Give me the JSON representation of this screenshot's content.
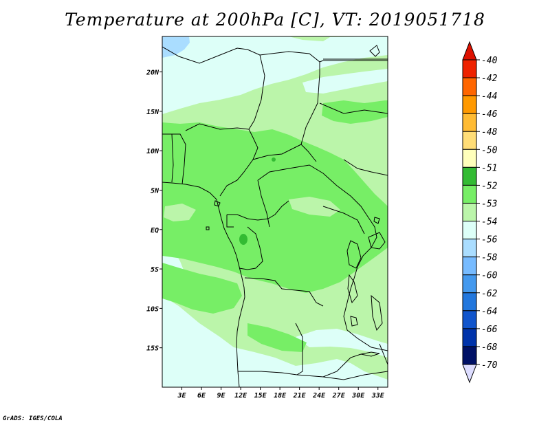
{
  "title": "Temperature at 200hPa [C], VT: 2019051718",
  "credit": "GrADS: IGES/COLA",
  "map": {
    "lon_range": [
      0,
      34.5
    ],
    "lat_range": [
      -20,
      24.5
    ],
    "lat_ticks": [
      {
        "value": 20,
        "label": "20N"
      },
      {
        "value": 15,
        "label": "15N"
      },
      {
        "value": 10,
        "label": "10N"
      },
      {
        "value": 5,
        "label": "5N"
      },
      {
        "value": 0,
        "label": "EQ"
      },
      {
        "value": -5,
        "label": "5S"
      },
      {
        "value": -10,
        "label": "10S"
      },
      {
        "value": -15,
        "label": "15S"
      }
    ],
    "lon_ticks": [
      {
        "value": 3,
        "label": "3E"
      },
      {
        "value": 6,
        "label": "6E"
      },
      {
        "value": 9,
        "label": "9E"
      },
      {
        "value": 12,
        "label": "12E"
      },
      {
        "value": 15,
        "label": "15E"
      },
      {
        "value": 18,
        "label": "18E"
      },
      {
        "value": 21,
        "label": "21E"
      },
      {
        "value": 24,
        "label": "24E"
      },
      {
        "value": 27,
        "label": "27E"
      },
      {
        "value": 30,
        "label": "30E"
      },
      {
        "value": 33,
        "label": "33E"
      }
    ]
  },
  "legend": {
    "levels": [
      {
        "label": "-40",
        "color": "#cc0000"
      },
      {
        "label": "-42",
        "color": "#ee2200"
      },
      {
        "label": "-44",
        "color": "#ff6600"
      },
      {
        "label": "-46",
        "color": "#ff9900"
      },
      {
        "label": "-48",
        "color": "#ffbb33"
      },
      {
        "label": "-50",
        "color": "#ffdd77"
      },
      {
        "label": "-51",
        "color": "#ffffbb"
      },
      {
        "label": "-52",
        "color": "#33bb33"
      },
      {
        "label": "-53",
        "color": "#77ee66"
      },
      {
        "label": "-54",
        "color": "#bbf5aa"
      },
      {
        "label": "-56",
        "color": "#ddfff8"
      },
      {
        "label": "-58",
        "color": "#aaddff"
      },
      {
        "label": "-60",
        "color": "#77bbff"
      },
      {
        "label": "-62",
        "color": "#4499ee"
      },
      {
        "label": "-64",
        "color": "#2277dd"
      },
      {
        "label": "-66",
        "color": "#1155cc"
      },
      {
        "label": "-68",
        "color": "#0033aa"
      },
      {
        "label": "-70",
        "color": "#001166"
      }
    ],
    "top_arrow_color": "#dd1100",
    "bottom_arrow_color": "#ddddff"
  }
}
